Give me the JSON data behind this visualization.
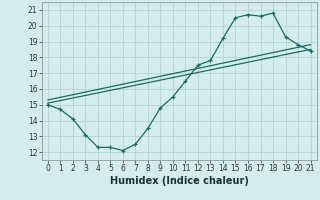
{
  "title": "",
  "xlabel": "Humidex (Indice chaleur)",
  "background_color": "#d4edec",
  "grid_color": "#b8d8d6",
  "line_color": "#1a6b62",
  "xlim": [
    -0.5,
    21.5
  ],
  "ylim": [
    11.5,
    21.5
  ],
  "xticks": [
    0,
    1,
    2,
    3,
    4,
    5,
    6,
    7,
    8,
    9,
    10,
    11,
    12,
    13,
    14,
    15,
    16,
    17,
    18,
    19,
    20,
    21
  ],
  "yticks": [
    12,
    13,
    14,
    15,
    16,
    17,
    18,
    19,
    20,
    21
  ],
  "line1_x": [
    0,
    1,
    2,
    3,
    4,
    5,
    6,
    7,
    8,
    9,
    10,
    11,
    12,
    13,
    14,
    15,
    16,
    17,
    18,
    19,
    20,
    21
  ],
  "line1_y": [
    15.0,
    14.7,
    14.1,
    13.1,
    12.3,
    12.3,
    12.1,
    12.5,
    13.5,
    14.8,
    15.5,
    16.5,
    17.5,
    17.8,
    19.2,
    20.5,
    20.7,
    20.6,
    20.8,
    19.3,
    18.8,
    18.4
  ],
  "line2_x": [
    0,
    21
  ],
  "line2_y": [
    15.1,
    18.5
  ],
  "line3_x": [
    0,
    21
  ],
  "line3_y": [
    15.3,
    18.8
  ],
  "xlabel_fontsize": 7.0,
  "tick_fontsize": 5.5
}
